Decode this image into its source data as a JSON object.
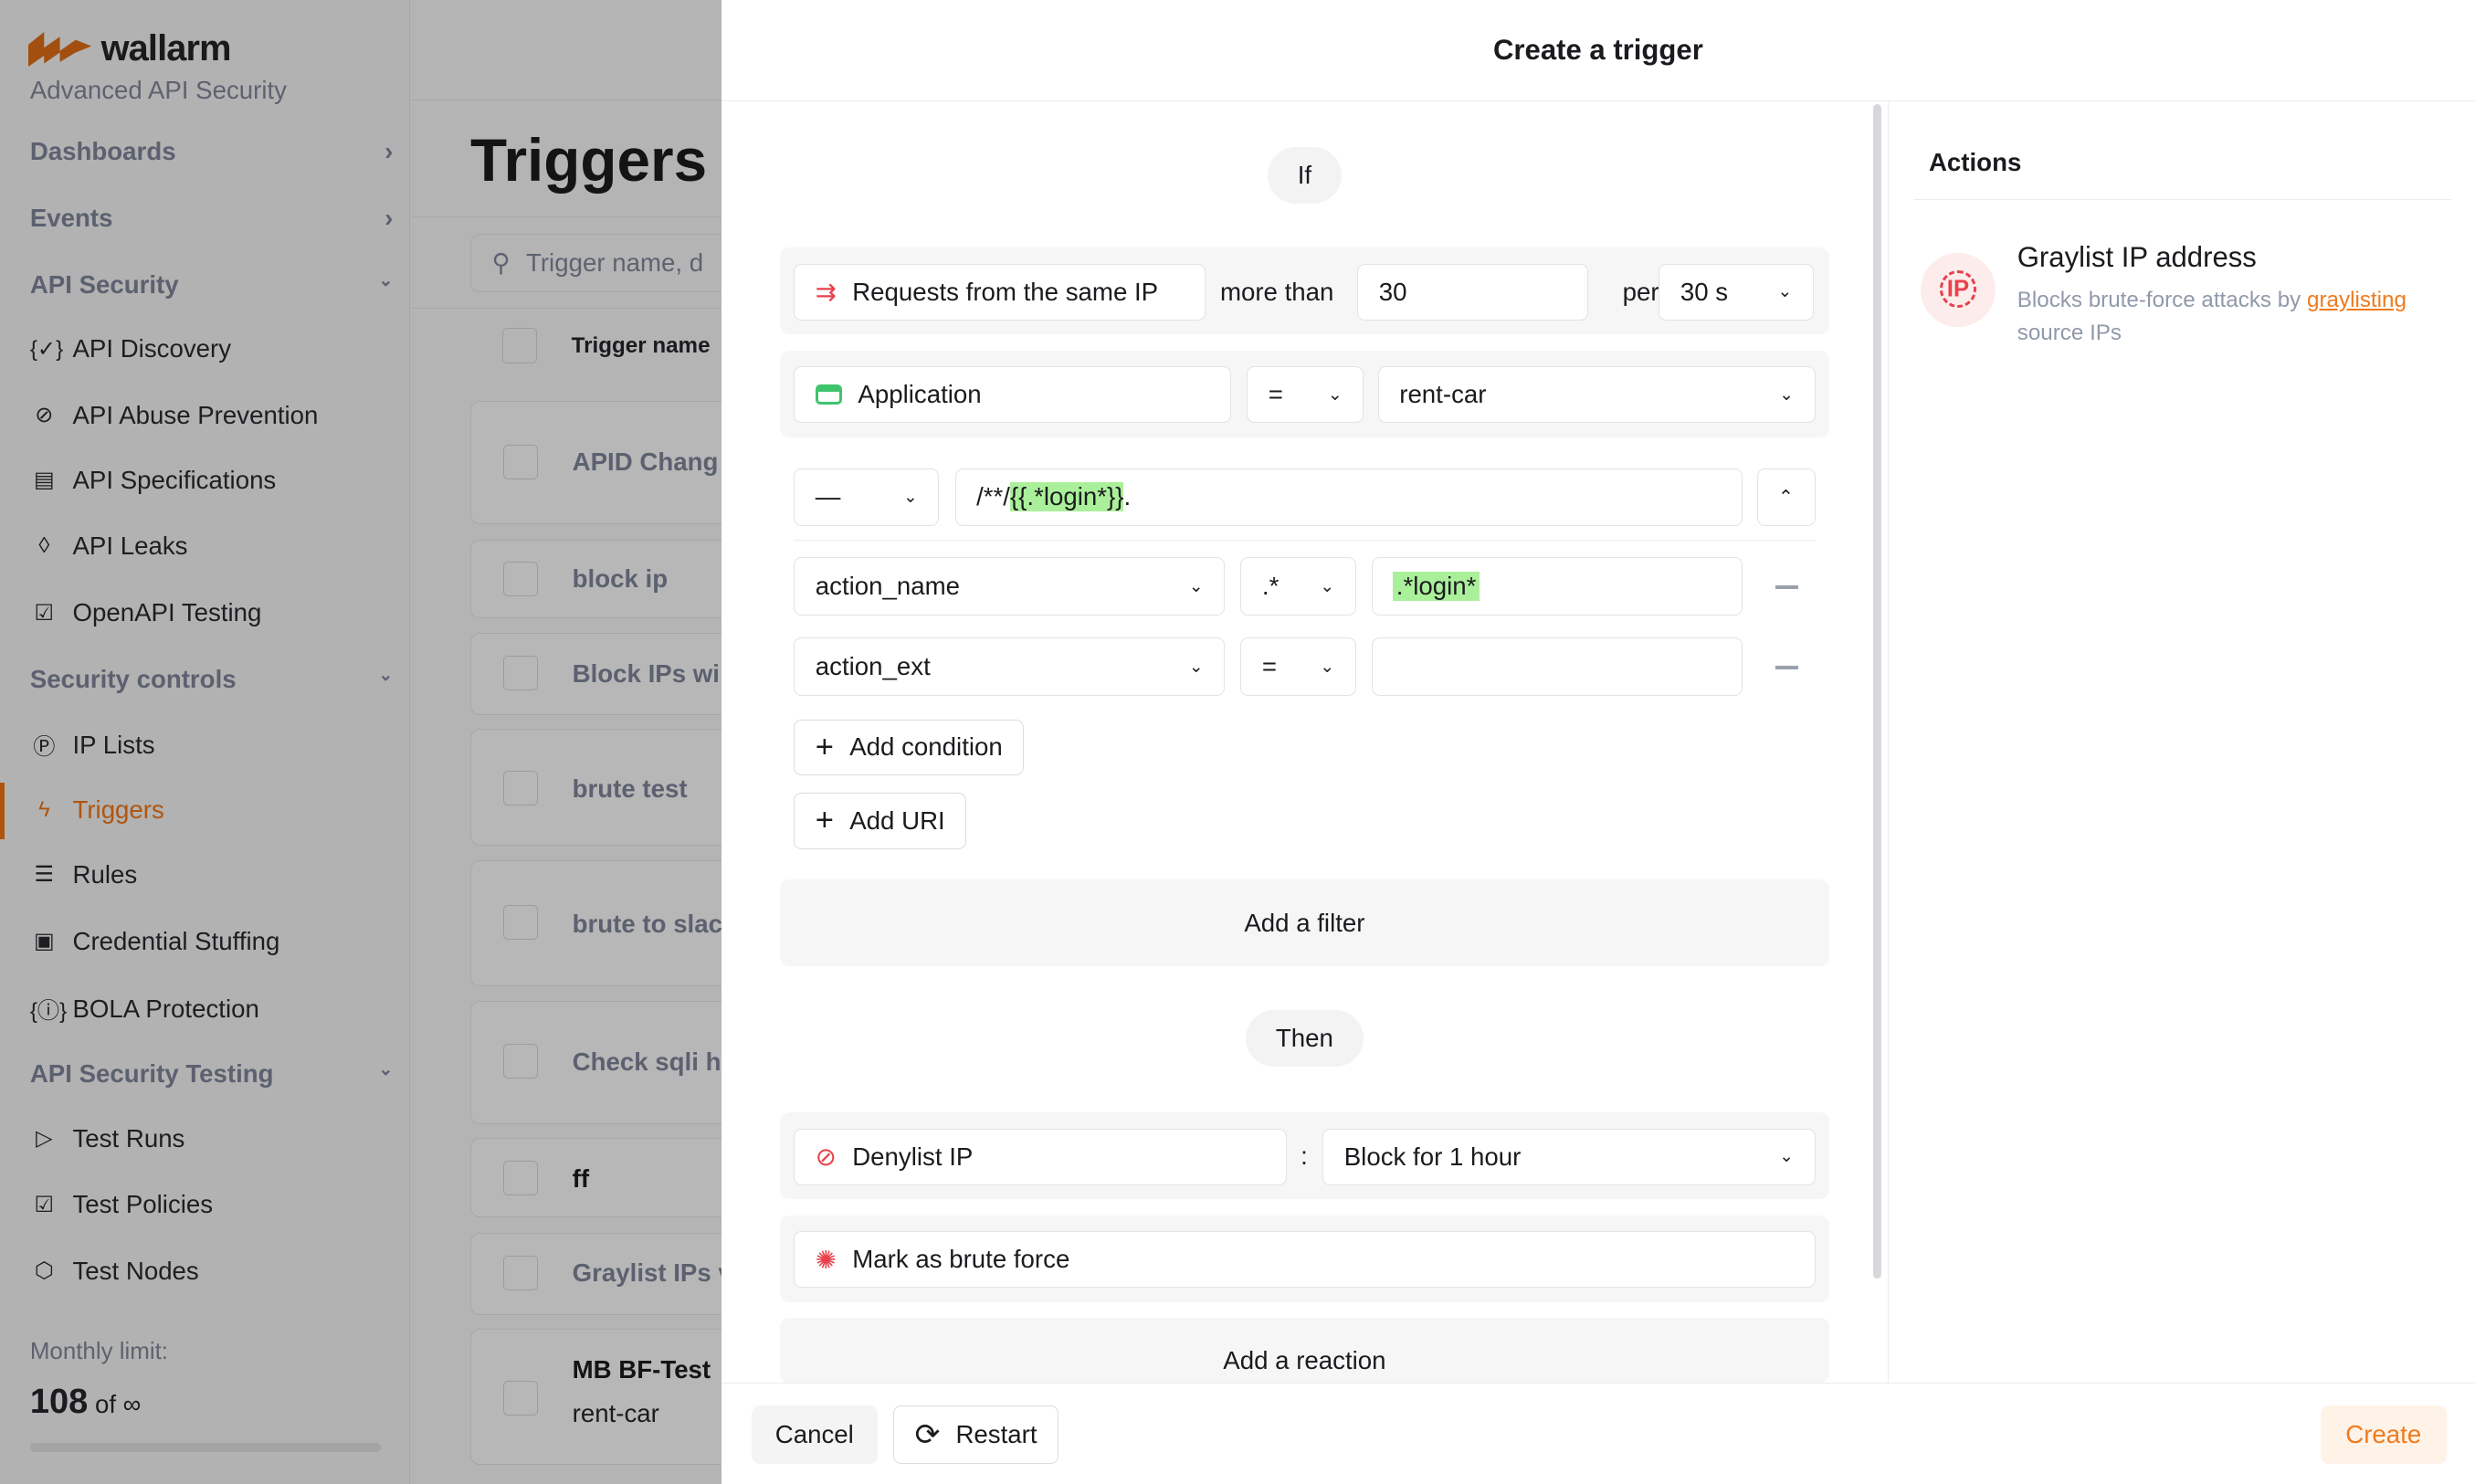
{
  "sidebar": {
    "brand": "wallarm",
    "subtitle": "Advanced API Security",
    "sections": [
      {
        "label": "Dashboards"
      },
      {
        "label": "Events"
      },
      {
        "label": "API Security"
      },
      {
        "label": "Security controls"
      },
      {
        "label": "API Security Testing"
      }
    ],
    "items": [
      {
        "label": "API Discovery",
        "icon": "braces-check-icon"
      },
      {
        "label": "API Abuse Prevention",
        "icon": "robot-off-icon"
      },
      {
        "label": "API Specifications",
        "icon": "document-icon"
      },
      {
        "label": "API Leaks",
        "icon": "drop-icon"
      },
      {
        "label": "OpenAPI Testing",
        "icon": "checklist-icon"
      },
      {
        "label": "IP Lists",
        "icon": "ip-icon"
      },
      {
        "label": "Triggers",
        "icon": "lightning-icon",
        "active": true
      },
      {
        "label": "Rules",
        "icon": "list-check-icon"
      },
      {
        "label": "Credential Stuffing",
        "icon": "id-card-icon"
      },
      {
        "label": "BOLA Protection",
        "icon": "id-braces-icon"
      },
      {
        "label": "Test Runs",
        "icon": "play-icon"
      },
      {
        "label": "Test Policies",
        "icon": "policy-icon"
      },
      {
        "label": "Test Nodes",
        "icon": "cube-icon"
      }
    ],
    "monthly_limit_label": "Monthly limit:",
    "monthly_limit_value": "108",
    "monthly_limit_of": "of ∞"
  },
  "main": {
    "title": "Triggers",
    "search_placeholder": "Trigger name, d",
    "column_header": "Trigger name",
    "rows": [
      "APID Chang",
      "block ip",
      "Block IPs wi",
      "brute test",
      "brute to slac",
      "Check sqli h",
      "ff",
      "Graylist IPs v",
      "MB BF-Test"
    ],
    "last_row_sub": "rent-car"
  },
  "modal": {
    "title": "Create a trigger",
    "if_label": "If",
    "condition": {
      "type": "Requests from the same IP",
      "more_than": "more than",
      "threshold": "30",
      "per": "per",
      "period": "30 s"
    },
    "filter_application": {
      "label": "Application",
      "operator": "=",
      "value": "rent-car"
    },
    "uri": {
      "operator": "—",
      "prefix": "/**/",
      "highlight": "{{.*login*}}",
      "suffix": "."
    },
    "uri_conditions": [
      {
        "field": "action_name",
        "operator": ".*",
        "value": ".*login*"
      },
      {
        "field": "action_ext",
        "operator": "=",
        "value": ""
      }
    ],
    "add_condition": "Add condition",
    "add_uri": "Add URI",
    "add_filter": "Add a filter",
    "then_label": "Then",
    "reactions": [
      {
        "label": "Denylist IP",
        "separator": ":",
        "value": "Block for 1 hour"
      },
      {
        "label": "Mark as brute force"
      }
    ],
    "add_reaction": "Add a reaction",
    "cancel": "Cancel",
    "restart": "Restart",
    "create": "Create"
  },
  "actions_panel": {
    "title": "Actions",
    "item_title": "Graylist IP address",
    "item_desc": "Blocks brute-force attacks by",
    "item_link": "graylisting",
    "item_desc2": "source IPs"
  },
  "colors": {
    "accent": "#f07a1c",
    "highlight": "#aaf09a",
    "danger": "#e8414b"
  }
}
